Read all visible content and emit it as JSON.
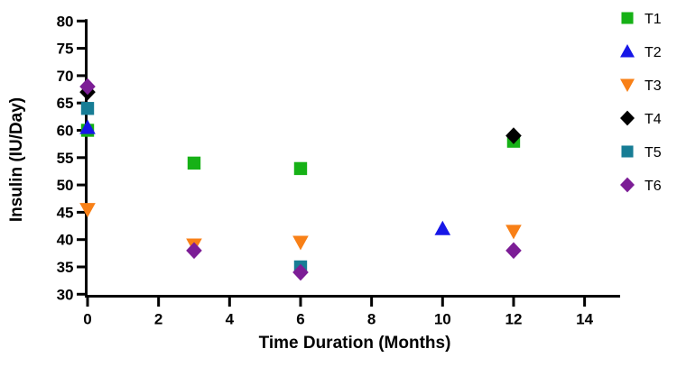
{
  "chart_data": {
    "type": "scatter",
    "title": "",
    "xlabel": "Time Duration (Months)",
    "ylabel": "Insulin (IU/Day)",
    "xlim": [
      0,
      15
    ],
    "ylim": [
      30,
      80
    ],
    "xticks": [
      0,
      2,
      4,
      6,
      8,
      10,
      12,
      14
    ],
    "yticks": [
      30,
      35,
      40,
      45,
      50,
      55,
      60,
      65,
      70,
      75,
      80
    ],
    "grid": false,
    "legend_position": "right",
    "axis_color": "#000000",
    "series": [
      {
        "name": "T1",
        "marker": "square",
        "color": "#16b116",
        "points": [
          [
            0,
            60
          ],
          [
            3,
            54
          ],
          [
            6,
            53
          ],
          [
            12,
            58
          ]
        ]
      },
      {
        "name": "T2",
        "marker": "triangle-up",
        "color": "#1717e7",
        "points": [
          [
            0,
            60.5
          ],
          [
            10,
            42
          ]
        ]
      },
      {
        "name": "T3",
        "marker": "triangle-down",
        "color": "#f88017",
        "points": [
          [
            0,
            45.5
          ],
          [
            3,
            39
          ],
          [
            6,
            39.5
          ],
          [
            12,
            41.5
          ]
        ]
      },
      {
        "name": "T4",
        "marker": "diamond",
        "color": "#000000",
        "points": [
          [
            0,
            67
          ],
          [
            12,
            59
          ]
        ]
      },
      {
        "name": "T5",
        "marker": "square",
        "color": "#177d95",
        "points": [
          [
            0,
            64
          ],
          [
            6,
            35
          ]
        ]
      },
      {
        "name": "T6",
        "marker": "diamond",
        "color": "#7c1d96",
        "points": [
          [
            0,
            68
          ],
          [
            3,
            38
          ],
          [
            6,
            34
          ],
          [
            12,
            38
          ]
        ]
      }
    ]
  }
}
